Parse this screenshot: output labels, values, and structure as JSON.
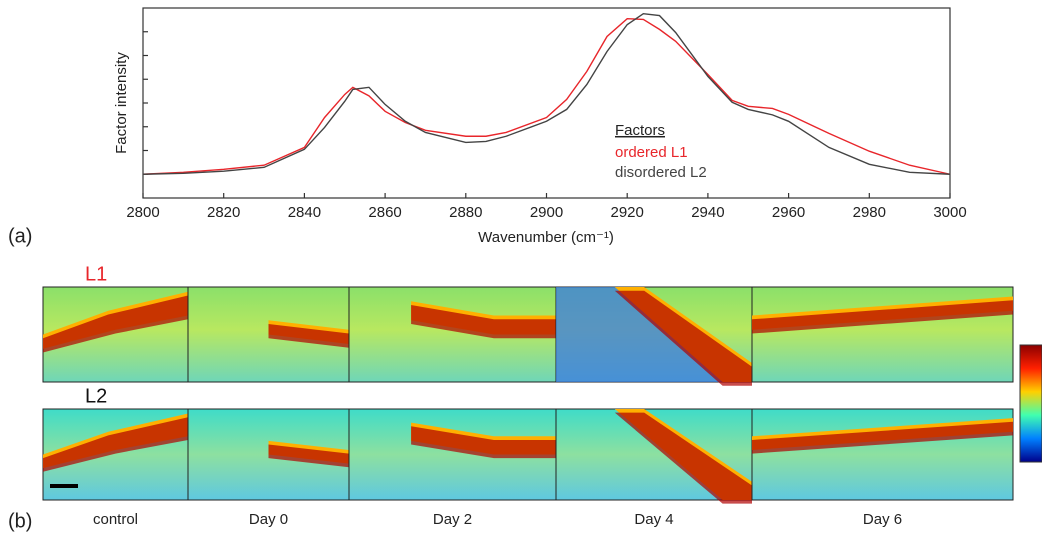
{
  "chart_data": {
    "type": "line",
    "x_label": "Wavenumber (cm⁻¹)",
    "y_label": "Factor intensity",
    "legend_title": "Factors",
    "legend": "center-right",
    "x": [
      2800,
      2810,
      2820,
      2830,
      2840,
      2845,
      2850,
      2852,
      2856,
      2860,
      2865,
      2870,
      2880,
      2885,
      2890,
      2900,
      2905,
      2910,
      2915,
      2920,
      2924,
      2928,
      2932,
      2940,
      2946,
      2950,
      2956,
      2960,
      2970,
      2980,
      2990,
      3000
    ],
    "series": [
      {
        "name": "ordered L1",
        "color": "#e8262b",
        "values": [
          0,
          0.08,
          0.21,
          0.38,
          1.13,
          2.39,
          3.36,
          3.66,
          3.3,
          2.65,
          2.18,
          1.85,
          1.6,
          1.6,
          1.76,
          2.39,
          3.15,
          4.33,
          5.8,
          6.55,
          6.52,
          6.1,
          5.6,
          4.2,
          3.11,
          2.86,
          2.77,
          2.52,
          1.72,
          0.97,
          0.38,
          0
        ]
      },
      {
        "name": "disordered L2",
        "color": "#444444",
        "values": [
          0,
          0.04,
          0.13,
          0.29,
          1.05,
          1.97,
          3.07,
          3.57,
          3.66,
          2.94,
          2.23,
          1.76,
          1.34,
          1.38,
          1.6,
          2.23,
          2.73,
          3.78,
          5.17,
          6.3,
          6.76,
          6.68,
          5.97,
          4.12,
          3.03,
          2.73,
          2.5,
          2.23,
          1.13,
          0.42,
          0.08,
          0
        ]
      }
    ],
    "xlim": [
      2800,
      3000
    ],
    "xticks": [
      2800,
      2820,
      2840,
      2860,
      2880,
      2900,
      2920,
      2940,
      2960,
      2980,
      3000
    ],
    "ylim": [
      -1,
      7
    ],
    "yticks": [
      0,
      1,
      2,
      3,
      4,
      5,
      6
    ],
    "grid": false
  },
  "panel_a_label": "(a)",
  "panel_b": {
    "label": "(b)",
    "rows": [
      "L1",
      "L2"
    ],
    "columns": [
      "control",
      "Day 0",
      "Day 2",
      "Day 4",
      "Day 6"
    ]
  }
}
